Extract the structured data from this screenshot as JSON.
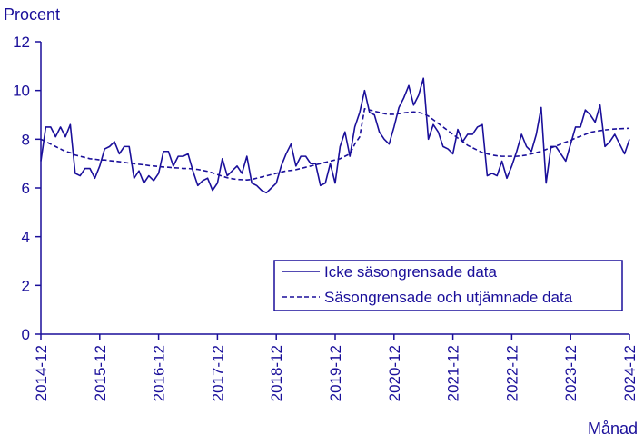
{
  "chart_data": {
    "type": "line",
    "ylabel": "Procent",
    "xlabel": "Månad",
    "ylim": [
      0,
      12
    ],
    "yticks": [
      "0",
      "2",
      "4",
      "6",
      "8",
      "10",
      "12"
    ],
    "xticks": [
      "2014-12",
      "2015-12",
      "2016-12",
      "2017-12",
      "2018-12",
      "2019-12",
      "2020-12",
      "2021-12",
      "2022-12",
      "2023-12",
      "2024-12"
    ],
    "x_start": "2014-12",
    "grid": false,
    "legend_position": "bottom-right",
    "color": "#1a0f9a",
    "series": [
      {
        "name": "Icke säsongrensade data",
        "style": "solid",
        "values": [
          7.1,
          8.5,
          8.5,
          8.1,
          8.5,
          8.1,
          8.6,
          6.6,
          6.5,
          6.8,
          6.8,
          6.4,
          6.9,
          7.6,
          7.7,
          7.9,
          7.4,
          7.7,
          7.7,
          6.4,
          6.7,
          6.2,
          6.5,
          6.3,
          6.6,
          7.5,
          7.5,
          6.9,
          7.3,
          7.3,
          7.4,
          6.7,
          6.1,
          6.3,
          6.4,
          5.9,
          6.2,
          7.2,
          6.5,
          6.7,
          6.9,
          6.6,
          7.3,
          6.2,
          6.1,
          5.9,
          5.8,
          6.0,
          6.2,
          6.9,
          7.4,
          7.8,
          6.9,
          7.3,
          7.3,
          7.0,
          7.0,
          6.1,
          6.2,
          7.0,
          6.2,
          7.7,
          8.3,
          7.3,
          8.5,
          9.1,
          10.0,
          9.1,
          9.0,
          8.3,
          8.0,
          7.8,
          8.5,
          9.3,
          9.7,
          10.2,
          9.4,
          9.8,
          10.5,
          8.0,
          8.6,
          8.3,
          7.7,
          7.6,
          7.4,
          8.4,
          7.9,
          8.2,
          8.2,
          8.5,
          8.6,
          6.5,
          6.6,
          6.5,
          7.1,
          6.4,
          6.9,
          7.5,
          8.2,
          7.7,
          7.5,
          8.2,
          9.3,
          6.2,
          7.7,
          7.7,
          7.4,
          7.1,
          7.8,
          8.5,
          8.5,
          9.2,
          9.0,
          8.7,
          9.4,
          7.7,
          7.9,
          8.2,
          7.8,
          7.4,
          8.0
        ]
      },
      {
        "name": "Säsongrensade och utjämnade data",
        "style": "dashed",
        "values": [
          8.0,
          7.9,
          7.8,
          7.7,
          7.6,
          7.5,
          7.45,
          7.35,
          7.3,
          7.25,
          7.2,
          7.18,
          7.15,
          7.15,
          7.12,
          7.1,
          7.08,
          7.05,
          7.02,
          7.0,
          6.97,
          6.95,
          6.92,
          6.9,
          6.88,
          6.86,
          6.85,
          6.83,
          6.82,
          6.8,
          6.8,
          6.78,
          6.76,
          6.72,
          6.68,
          6.62,
          6.55,
          6.48,
          6.42,
          6.38,
          6.35,
          6.34,
          6.33,
          6.35,
          6.4,
          6.45,
          6.5,
          6.55,
          6.6,
          6.65,
          6.7,
          6.72,
          6.75,
          6.8,
          6.85,
          6.9,
          6.95,
          7.0,
          7.05,
          7.1,
          7.15,
          7.2,
          7.3,
          7.4,
          7.8,
          8.1,
          9.25,
          9.2,
          9.15,
          9.1,
          9.05,
          9.02,
          9.02,
          9.05,
          9.08,
          9.1,
          9.12,
          9.1,
          9.05,
          8.95,
          8.8,
          8.65,
          8.5,
          8.35,
          8.2,
          8.05,
          7.9,
          7.75,
          7.65,
          7.55,
          7.45,
          7.4,
          7.35,
          7.32,
          7.3,
          7.3,
          7.3,
          7.3,
          7.32,
          7.35,
          7.4,
          7.45,
          7.5,
          7.58,
          7.65,
          7.72,
          7.8,
          7.88,
          7.95,
          8.05,
          8.12,
          8.2,
          8.28,
          8.32,
          8.35,
          8.38,
          8.4,
          8.42,
          8.43,
          8.44,
          8.45
        ]
      }
    ]
  }
}
